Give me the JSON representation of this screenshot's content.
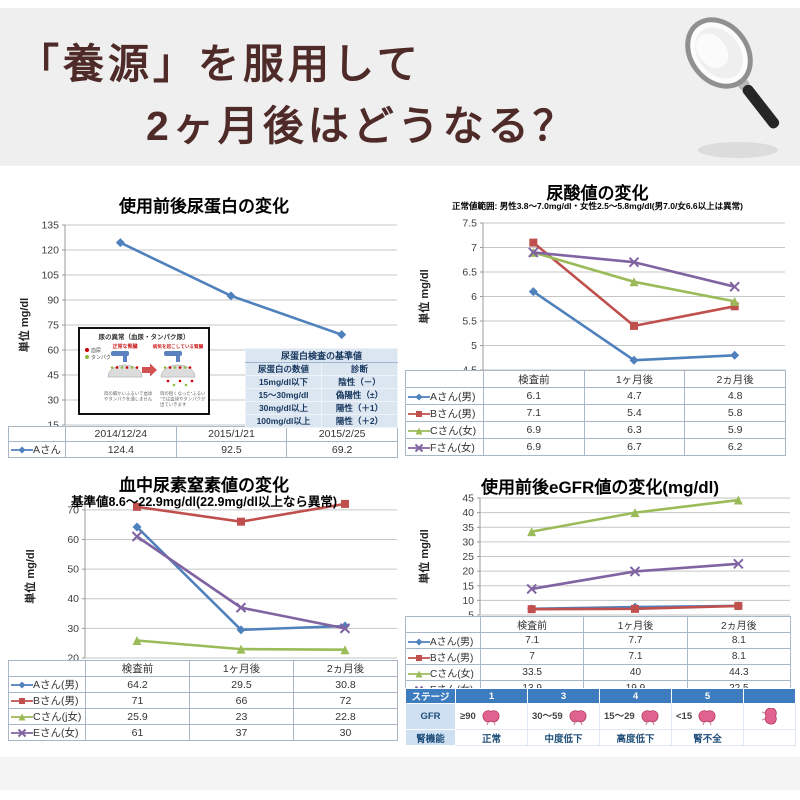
{
  "page": {
    "bg": "#ffffff",
    "footer_bg": "#f4f4f4"
  },
  "header": {
    "line1": "「養源」を服用して",
    "line2": "2ヶ月後はどうなる？",
    "text_color": "#4e2b28",
    "bg": "#efefef",
    "icon": "magnifier-icon"
  },
  "palette": {
    "blue": "#4f81bd",
    "red": "#c0504d",
    "green": "#9bbb59",
    "purple": "#8064a2",
    "grid": "#c6c6c6",
    "axis": "#9a9a9a",
    "table_border": "#a7b7c7"
  },
  "chart_data": [
    {
      "id": "urine-protein",
      "type": "line",
      "title": "使用前後尿蛋白の変化",
      "subtitle": "",
      "ylabel": "単位 mg/dl",
      "ylim": [
        15,
        135
      ],
      "ystep": 15,
      "grid": true,
      "legend_position": "table-left",
      "categories": [
        "2014/12/24",
        "2015/1/21",
        "2015/2/25"
      ],
      "series": [
        {
          "name": "Aさん",
          "color": "#4f81bd",
          "marker": "diamond",
          "values": [
            124.4,
            92.5,
            69.2
          ]
        }
      ]
    },
    {
      "id": "uric-acid",
      "type": "line",
      "title": "尿酸値の変化",
      "subtitle": "正常値範囲: 男性3.8～7.0mg/dl・女性2.5～5.8mg/dl(男7.0/女6.6以上は異常)",
      "ylabel": "単位 mg/dl",
      "ylim": [
        4.5,
        7.5
      ],
      "ystep": 0.5,
      "grid": true,
      "legend_position": "table-left",
      "categories": [
        "検査前",
        "1ヶ月後",
        "2ヵ月後"
      ],
      "series": [
        {
          "name": "Aさん(男)",
          "color": "#4f81bd",
          "marker": "diamond",
          "values": [
            6.1,
            4.7,
            4.8
          ]
        },
        {
          "name": "Bさん(男)",
          "color": "#c0504d",
          "marker": "square",
          "values": [
            7.1,
            5.4,
            5.8
          ]
        },
        {
          "name": "Cさん(女)",
          "color": "#9bbb59",
          "marker": "triangle",
          "values": [
            6.9,
            6.3,
            5.9
          ]
        },
        {
          "name": "Fさん(女)",
          "color": "#8064a2",
          "marker": "x",
          "values": [
            6.9,
            6.7,
            6.2
          ]
        }
      ]
    },
    {
      "id": "blood-urea-nitrogen",
      "type": "line",
      "title": "血中尿素窒素値の変化",
      "subtitle": "基準値8.6～22.9mg/dl(22.9mg/dl以上なら異常)",
      "ylabel": "単位 mg/dl",
      "ylim": [
        20,
        75
      ],
      "ystep": 10,
      "grid": true,
      "legend_position": "table-left",
      "categories": [
        "検査前",
        "1ヶ月後",
        "2ヵ月後"
      ],
      "series": [
        {
          "name": "Aさん(男)",
          "color": "#4f81bd",
          "marker": "diamond",
          "values": [
            64.2,
            29.5,
            30.8
          ]
        },
        {
          "name": "Bさん(男)",
          "color": "#c0504d",
          "marker": "square",
          "values": [
            71,
            66,
            72
          ]
        },
        {
          "name": "Cさん(j女)",
          "color": "#9bbb59",
          "marker": "triangle",
          "values": [
            25.9,
            23,
            22.8
          ]
        },
        {
          "name": "Eさん(女)",
          "color": "#8064a2",
          "marker": "x",
          "values": [
            61,
            37,
            30
          ]
        }
      ]
    },
    {
      "id": "egfr",
      "type": "line",
      "title": "使用前後eGFR値の変化(mg/dl)",
      "subtitle": "",
      "ylabel": "単位 mg/dl",
      "ylim": [
        5,
        45
      ],
      "ystep": 5,
      "grid": true,
      "legend_position": "table-left",
      "categories": [
        "検査前",
        "1ヶ月後",
        "2ヵ月後"
      ],
      "series": [
        {
          "name": "Aさん(男)",
          "color": "#4f81bd",
          "marker": "diamond",
          "values": [
            7.1,
            7.7,
            8.1
          ]
        },
        {
          "name": "Bさん(男)",
          "color": "#c0504d",
          "marker": "square",
          "values": [
            7,
            7.1,
            8.1
          ]
        },
        {
          "name": "Cさん(女)",
          "color": "#9bbb59",
          "marker": "triangle",
          "values": [
            33.5,
            40,
            44.3
          ]
        },
        {
          "name": "Eさん(女)",
          "color": "#8064a2",
          "marker": "x",
          "values": [
            13.9,
            19.9,
            22.5
          ]
        }
      ]
    }
  ],
  "inset": {
    "title": "尿の異常（血尿・タンパク尿）",
    "legend": [
      {
        "label": "血尿",
        "color": "#cc0000"
      },
      {
        "label": "タンパク",
        "color": "#8fbc45"
      }
    ],
    "left_title": "正常な腎臓",
    "right_title": "病気を起こしている腎臓",
    "captions": {
      "left": "目の細かいふるいで血球やタンパクを通しません",
      "right": "目の粗くなった“ふるい”では血球やタンパクが出ていきます"
    }
  },
  "standards_table": {
    "title": "尿蛋白検査の基準値",
    "columns": [
      "尿蛋白の数値",
      "診断"
    ],
    "rows": [
      [
        "15mg/dl以下",
        "陰性（－）"
      ],
      [
        "15～30mg/dl",
        "偽陽性（±）"
      ],
      [
        "30mg/dl以上",
        "陽性（＋1）"
      ],
      [
        "100mg/dl以上",
        "陽性（＋2）"
      ]
    ]
  },
  "stage_table": {
    "corner_label": "ステージ",
    "stages": [
      "1",
      "3",
      "4",
      "5"
    ],
    "gfr_label": "GFR",
    "gfr_values": [
      "≥90",
      "30～59",
      "15～29",
      "<15"
    ],
    "function_label": "腎機能",
    "function_values": [
      "正常",
      "中度低下",
      "高度低下",
      "腎不全"
    ],
    "icon": "kidney-icon",
    "header_bg": "#3e7cc0",
    "label_bg": "#cfe0f3"
  }
}
